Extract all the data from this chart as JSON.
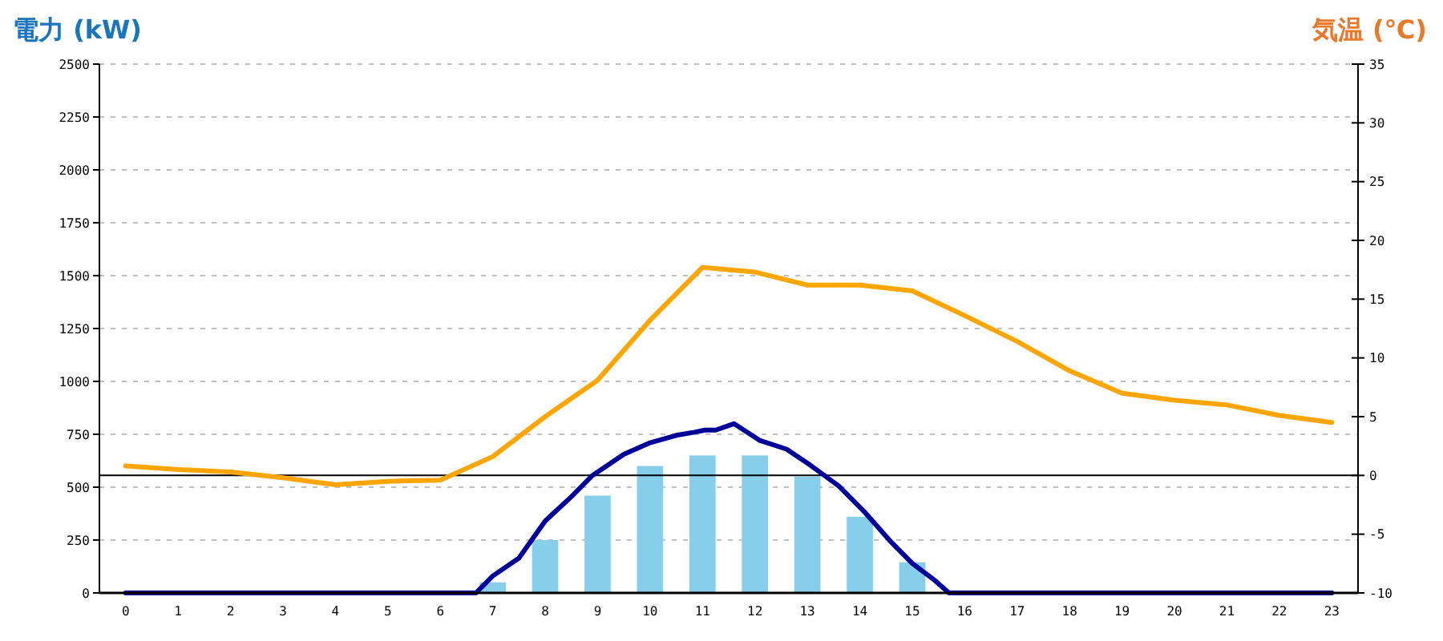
{
  "chart_data": {
    "type": "bar",
    "ylabel": "電力 (kW)",
    "y2label": "気温 (℃)",
    "x": [
      0,
      1,
      2,
      3,
      4,
      5,
      6,
      7,
      8,
      9,
      10,
      11,
      12,
      13,
      14,
      15,
      16,
      17,
      18,
      19,
      20,
      21,
      22,
      23
    ],
    "xlim": [
      -0.5,
      23.5
    ],
    "xticks": [
      0,
      1,
      2,
      3,
      4,
      5,
      6,
      7,
      8,
      9,
      10,
      11,
      12,
      13,
      14,
      15,
      16,
      17,
      18,
      19,
      20,
      21,
      22,
      23
    ],
    "series": [
      {
        "color": "#87ceeb",
        "values": [
          0,
          0,
          0,
          0,
          0,
          0,
          0,
          50,
          250,
          460,
          600,
          650,
          650,
          550,
          360,
          145,
          0,
          0,
          0,
          0,
          0,
          0,
          0,
          0
        ]
      },
      {
        "type": "line",
        "color": "#000099",
        "x": [
          0,
          6.68,
          7.0,
          7.5,
          8.0,
          8.5,
          8.9,
          9.5,
          10.0,
          10.5,
          10.85,
          11.05,
          11.25,
          11.6,
          12.1,
          12.6,
          13.05,
          13.6,
          14.1,
          14.6,
          15.0,
          15.4,
          15.7,
          23
        ],
        "values": [
          0,
          0,
          80,
          165,
          340,
          455,
          555,
          655,
          710,
          745,
          760,
          770,
          770,
          800,
          720,
          680,
          605,
          505,
          380,
          240,
          140,
          65,
          0,
          0
        ]
      },
      {
        "type": "line",
        "axis": "y2",
        "color": "#ffa500",
        "values": [
          0.8,
          0.5,
          0.3,
          -0.2,
          -0.8,
          -0.5,
          -0.4,
          1.6,
          5,
          8.1,
          13.2,
          17.7,
          17.3,
          16.2,
          16.2,
          15.7,
          13.6,
          11.4,
          8.9,
          7,
          6.4,
          6,
          5.1,
          4.5
        ]
      }
    ],
    "ylim": [
      0,
      2500
    ],
    "yticks": [
      0,
      250,
      500,
      750,
      1000,
      1250,
      1500,
      1750,
      2000,
      2250,
      2500
    ],
    "y2lim": [
      -10,
      35
    ],
    "y2ticks": [
      -10,
      -5,
      0,
      5,
      10,
      15,
      20,
      25,
      30,
      35
    ],
    "ref_lines": [
      {
        "axis": "y2",
        "value": 0,
        "color": "#000000"
      }
    ],
    "grid": "y"
  }
}
